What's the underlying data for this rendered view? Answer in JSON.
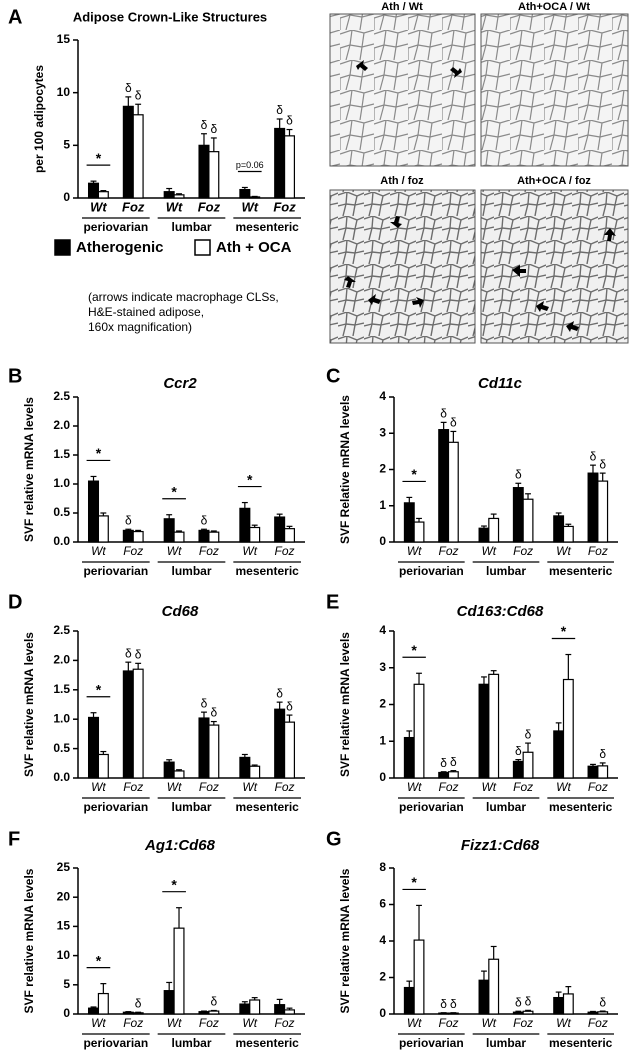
{
  "chart_data": [
    {
      "type": "bar",
      "label": "A",
      "title": "Adipose Crown-Like Structures",
      "ylabel": "per 100 adipocytes",
      "ylim": [
        0,
        15
      ],
      "yticks": [
        0,
        5,
        10,
        15
      ],
      "groups": [
        "periovarian",
        "lumbar",
        "mesenteric"
      ],
      "categories": [
        "Wt",
        "Foz",
        "Wt",
        "Foz",
        "Wt",
        "Foz"
      ],
      "series": [
        {
          "name": "Atherogenic",
          "color": "#000000",
          "values": [
            1.4,
            8.7,
            0.6,
            5.0,
            0.8,
            6.6
          ],
          "errors": [
            0.2,
            0.9,
            0.3,
            1.1,
            0.2,
            0.9
          ],
          "symbols": [
            null,
            "δ",
            null,
            "δ",
            null,
            "δ"
          ]
        },
        {
          "name": "Ath + OCA",
          "color": "#ffffff",
          "values": [
            0.6,
            7.9,
            0.3,
            4.4,
            0.1,
            5.9
          ],
          "errors": [
            0.1,
            1.0,
            0.1,
            1.3,
            0.05,
            0.6
          ],
          "symbols": [
            null,
            "δ",
            null,
            "δ",
            null,
            "δ"
          ]
        }
      ],
      "brackets": [
        "*",
        null,
        null,
        null,
        "p=0.06",
        null
      ],
      "legend": true,
      "note": [
        "(arrows indicate macrophage CLSs,",
        "H&E-stained adipose,",
        "160x magnification)"
      ]
    },
    {
      "type": "bar",
      "label": "B",
      "title": "Ccr2",
      "ylabel": "SVF relative mRNA levels",
      "ylim": [
        0,
        2.5
      ],
      "yticks": [
        {
          "value": 0,
          "label": "0.0"
        },
        {
          "value": 0.5,
          "label": "0.5"
        },
        {
          "value": 1,
          "label": "1.0"
        },
        {
          "value": 1.5,
          "label": "1.5"
        },
        {
          "value": 2,
          "label": "2.0"
        },
        {
          "value": 2.5,
          "label": "2.5"
        }
      ],
      "groups": [
        "periovarian",
        "lumbar",
        "mesenteric"
      ],
      "categories": [
        "Wt",
        "Foz",
        "Wt",
        "Foz",
        "Wt",
        "Foz"
      ],
      "series": [
        {
          "color": "#000000",
          "values": [
            1.05,
            0.2,
            0.4,
            0.2,
            0.58,
            0.43
          ],
          "errors": [
            0.08,
            0.02,
            0.07,
            0.02,
            0.1,
            0.05
          ],
          "symbols": [
            null,
            "δ",
            null,
            "δ",
            null,
            null
          ]
        },
        {
          "color": "#ffffff",
          "values": [
            0.45,
            0.18,
            0.17,
            0.17,
            0.25,
            0.23
          ],
          "errors": [
            0.05,
            0.02,
            0.02,
            0.02,
            0.04,
            0.04
          ],
          "symbols": [
            null,
            null,
            null,
            null,
            null,
            null
          ]
        }
      ],
      "brackets": [
        "*",
        null,
        "*",
        null,
        "*",
        null
      ]
    },
    {
      "type": "bar",
      "label": "C",
      "title": "Cd11c",
      "ylabel": "SVF Relative mRNA levels",
      "ylim": [
        0,
        4
      ],
      "yticks": [
        0,
        1,
        2,
        3,
        4
      ],
      "groups": [
        "periovarian",
        "lumbar",
        "mesenteric"
      ],
      "categories": [
        "Wt",
        "Foz",
        "Wt",
        "Foz",
        "Wt",
        "Foz"
      ],
      "series": [
        {
          "color": "#000000",
          "values": [
            1.08,
            3.1,
            0.38,
            1.5,
            0.72,
            1.9
          ],
          "errors": [
            0.15,
            0.2,
            0.06,
            0.12,
            0.08,
            0.22
          ],
          "symbols": [
            null,
            "δ",
            null,
            "δ",
            null,
            "δ"
          ]
        },
        {
          "color": "#ffffff",
          "values": [
            0.55,
            2.75,
            0.65,
            1.18,
            0.43,
            1.68
          ],
          "errors": [
            0.1,
            0.3,
            0.12,
            0.15,
            0.06,
            0.22
          ],
          "symbols": [
            null,
            "δ",
            null,
            null,
            null,
            "δ"
          ]
        }
      ],
      "brackets": [
        "*",
        null,
        null,
        null,
        null,
        null
      ]
    },
    {
      "type": "bar",
      "label": "D",
      "title": "Cd68",
      "ylabel": "SVF relative mRNA levels",
      "ylim": [
        0,
        2.5
      ],
      "yticks": [
        {
          "value": 0,
          "label": "0.0"
        },
        {
          "value": 0.5,
          "label": "0.5"
        },
        {
          "value": 1,
          "label": "1.0"
        },
        {
          "value": 1.5,
          "label": "1.5"
        },
        {
          "value": 2,
          "label": "2.0"
        },
        {
          "value": 2.5,
          "label": "2.5"
        }
      ],
      "groups": [
        "periovarian",
        "lumbar",
        "mesenteric"
      ],
      "categories": [
        "Wt",
        "Foz",
        "Wt",
        "Foz",
        "Wt",
        "Foz"
      ],
      "series": [
        {
          "color": "#000000",
          "values": [
            1.03,
            1.82,
            0.27,
            1.02,
            0.35,
            1.17
          ],
          "errors": [
            0.08,
            0.15,
            0.04,
            0.1,
            0.05,
            0.12
          ],
          "symbols": [
            null,
            "δ",
            null,
            "δ",
            null,
            "δ"
          ]
        },
        {
          "color": "#ffffff",
          "values": [
            0.4,
            1.85,
            0.12,
            0.9,
            0.2,
            0.95
          ],
          "errors": [
            0.05,
            0.1,
            0.02,
            0.06,
            0.02,
            0.12
          ],
          "symbols": [
            null,
            "δ",
            null,
            "δ",
            null,
            "δ"
          ]
        }
      ],
      "brackets": [
        "*",
        null,
        null,
        null,
        null,
        null
      ]
    },
    {
      "type": "bar",
      "label": "E",
      "title": "Cd163:Cd68",
      "ylabel": "SVF relative mRNA levels",
      "ylim": [
        0,
        4
      ],
      "yticks": [
        0,
        1,
        2,
        3,
        4
      ],
      "groups": [
        "periovarian",
        "lumbar",
        "mesenteric"
      ],
      "categories": [
        "Wt",
        "Foz",
        "Wt",
        "Foz",
        "Wt",
        "Foz"
      ],
      "series": [
        {
          "color": "#000000",
          "values": [
            1.1,
            0.15,
            2.55,
            0.45,
            1.28,
            0.32
          ],
          "errors": [
            0.18,
            0.02,
            0.2,
            0.05,
            0.22,
            0.05
          ],
          "symbols": [
            null,
            "δ",
            null,
            "δ",
            null,
            null
          ]
        },
        {
          "color": "#ffffff",
          "values": [
            2.55,
            0.17,
            2.82,
            0.7,
            2.68,
            0.33
          ],
          "errors": [
            0.3,
            0.03,
            0.1,
            0.25,
            0.68,
            0.08
          ],
          "symbols": [
            null,
            "δ",
            null,
            "δ",
            null,
            "δ"
          ]
        }
      ],
      "brackets": [
        "*",
        null,
        null,
        null,
        "*",
        null
      ]
    },
    {
      "type": "bar",
      "label": "F",
      "title": "Ag1:Cd68",
      "ylabel": "SVF relative mRNA levels",
      "ylim": [
        0,
        25
      ],
      "yticks": [
        0,
        5,
        10,
        15,
        20,
        25
      ],
      "groups": [
        "periovarian",
        "lumbar",
        "mesenteric"
      ],
      "categories": [
        "Wt",
        "Foz",
        "Wt",
        "Foz",
        "Wt",
        "Foz"
      ],
      "series": [
        {
          "color": "#000000",
          "values": [
            1.0,
            0.3,
            4.0,
            0.4,
            1.7,
            1.6
          ],
          "errors": [
            0.2,
            0.1,
            1.4,
            0.1,
            0.4,
            0.9
          ],
          "symbols": [
            null,
            null,
            null,
            null,
            null,
            null
          ]
        },
        {
          "color": "#ffffff",
          "values": [
            3.5,
            0.2,
            14.7,
            0.5,
            2.4,
            0.7
          ],
          "errors": [
            1.7,
            0.1,
            3.5,
            0.1,
            0.4,
            0.3
          ],
          "symbols": [
            null,
            "δ",
            null,
            "δ",
            null,
            null
          ]
        }
      ],
      "brackets": [
        "*",
        null,
        "*",
        null,
        null,
        null
      ]
    },
    {
      "type": "bar",
      "label": "G",
      "title": "Fizz1:Cd68",
      "ylabel": "SVF relative mRNA levels",
      "ylim": [
        0,
        8
      ],
      "yticks": [
        0,
        2,
        4,
        6,
        8
      ],
      "groups": [
        "periovarian",
        "lumbar",
        "mesenteric"
      ],
      "categories": [
        "Wt",
        "Foz",
        "Wt",
        "Foz",
        "Wt",
        "Foz"
      ],
      "series": [
        {
          "color": "#000000",
          "values": [
            1.45,
            0.05,
            1.85,
            0.1,
            0.9,
            0.1
          ],
          "errors": [
            0.35,
            0.02,
            0.5,
            0.05,
            0.3,
            0.04
          ],
          "symbols": [
            null,
            "δ",
            null,
            "δ",
            null,
            null
          ]
        },
        {
          "color": "#ffffff",
          "values": [
            4.05,
            0.05,
            3.0,
            0.15,
            1.1,
            0.12
          ],
          "errors": [
            1.9,
            0.02,
            0.7,
            0.05,
            0.4,
            0.04
          ],
          "symbols": [
            null,
            "δ",
            null,
            "δ",
            null,
            "δ"
          ]
        }
      ],
      "brackets": [
        "*",
        null,
        null,
        null,
        null,
        null
      ]
    }
  ],
  "images": [
    {
      "label": "Ath / Wt"
    },
    {
      "label": "Ath+OCA / Wt"
    },
    {
      "label": "Ath / foz"
    },
    {
      "label": "Ath+OCA / foz"
    }
  ]
}
